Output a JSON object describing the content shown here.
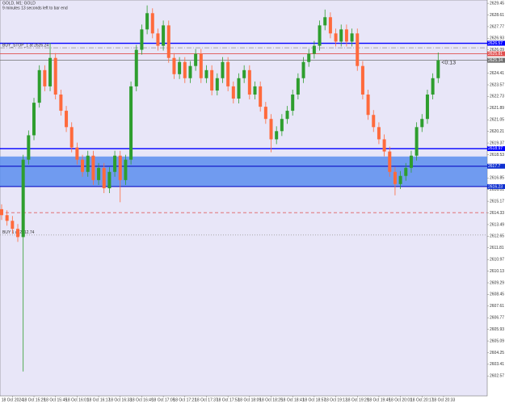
{
  "chart_data": {
    "type": "candlestick",
    "title": "GOLD, M1: GOLD",
    "subtitle": "9 minutes 13 seconds left to bar end",
    "countdown": "<0:13",
    "up_color": "#2e9e2e",
    "down_color": "#ff6a3c",
    "open": [
      2614.6,
      2614.17,
      2613.76,
      2613.18,
      2612.59,
      2618.17,
      2619.93,
      2622.28,
      2624.63,
      2623.46,
      2625.51,
      2622.87,
      2621.7,
      2620.52,
      2619.05,
      2618.17,
      2617.29,
      2618.46,
      2616.7,
      2617.58,
      2616.11,
      2617.29,
      2618.46,
      2616.7,
      2618.17,
      2623.46,
      2626.1,
      2627.57,
      2628.74,
      2627.28,
      2626.39,
      2627.86,
      2625.51,
      2624.34,
      2625.22,
      2624.05,
      2624.93,
      2625.81,
      2624.05,
      2624.63,
      2623.16,
      2624.05,
      2625.22,
      2623.46,
      2622.58,
      2624.05,
      2624.63,
      2622.87,
      2623.46,
      2621.99,
      2621.11,
      2619.64,
      2620.23,
      2621.11,
      2621.7,
      2622.87,
      2624.05,
      2625.22,
      2625.81,
      2626.39,
      2627.86,
      2628.45,
      2627.28,
      2626.69,
      2627.57,
      2626.69,
      2627.28,
      2624.93,
      2622.87,
      2621.4,
      2620.52,
      2619.64,
      2618.76,
      2617.29,
      2616.41,
      2617.0,
      2617.58,
      2618.46,
      2620.52,
      2621.11,
      2622.87,
      2624.05
    ],
    "high": [
      2614.95,
      2614.52,
      2614.11,
      2613.53,
      2618.52,
      2620.28,
      2622.63,
      2624.98,
      2624.98,
      2626.6,
      2625.86,
      2623.22,
      2622.05,
      2620.87,
      2619.4,
      2618.52,
      2618.81,
      2618.81,
      2617.93,
      2617.93,
      2617.64,
      2618.81,
      2618.81,
      2618.52,
      2623.81,
      2626.45,
      2627.92,
      2629.3,
      2629.09,
      2627.63,
      2628.21,
      2628.21,
      2625.86,
      2625.57,
      2625.57,
      2625.28,
      2626.16,
      2626.16,
      2624.98,
      2624.98,
      2624.4,
      2625.57,
      2625.57,
      2623.81,
      2624.4,
      2624.98,
      2624.98,
      2623.81,
      2623.81,
      2622.34,
      2621.46,
      2620.58,
      2621.46,
      2622.05,
      2623.22,
      2624.4,
      2625.57,
      2626.16,
      2626.74,
      2628.21,
      2629.0,
      2628.8,
      2627.63,
      2627.92,
      2627.92,
      2627.63,
      2627.63,
      2625.28,
      2623.22,
      2621.75,
      2620.87,
      2619.99,
      2619.11,
      2617.64,
      2617.35,
      2617.93,
      2618.81,
      2620.87,
      2621.46,
      2623.22,
      2624.4,
      2625.9
    ],
    "low": [
      2613.82,
      2613.41,
      2612.83,
      2612.24,
      2602.89,
      2617.82,
      2619.58,
      2621.93,
      2623.11,
      2623.11,
      2622.52,
      2621.35,
      2620.17,
      2618.7,
      2617.82,
      2616.94,
      2616.94,
      2616.35,
      2616.35,
      2615.76,
      2615.76,
      2616.94,
      2615.1,
      2616.35,
      2617.82,
      2623.11,
      2625.75,
      2627.22,
      2626.93,
      2626.04,
      2626.04,
      2625.16,
      2623.99,
      2623.99,
      2623.7,
      2623.7,
      2624.58,
      2623.7,
      2623.7,
      2622.81,
      2622.81,
      2623.7,
      2623.11,
      2622.23,
      2622.23,
      2623.7,
      2622.52,
      2622.52,
      2621.64,
      2620.76,
      2618.7,
      2619.29,
      2619.88,
      2620.76,
      2621.35,
      2622.52,
      2623.7,
      2624.87,
      2625.46,
      2626.04,
      2627.51,
      2626.93,
      2626.34,
      2626.34,
      2626.34,
      2626.34,
      2624.58,
      2622.52,
      2621.05,
      2620.17,
      2619.29,
      2618.41,
      2616.94,
      2615.6,
      2616.06,
      2616.65,
      2617.23,
      2618.11,
      2620.17,
      2620.76,
      2622.52,
      2623.7
    ],
    "close": [
      2614.17,
      2613.76,
      2613.18,
      2612.59,
      2618.17,
      2619.93,
      2622.28,
      2624.63,
      2623.46,
      2625.51,
      2622.87,
      2621.7,
      2620.52,
      2619.05,
      2618.17,
      2617.29,
      2618.46,
      2616.7,
      2617.58,
      2616.11,
      2617.29,
      2618.46,
      2616.7,
      2618.17,
      2623.46,
      2626.1,
      2627.57,
      2628.74,
      2627.28,
      2626.39,
      2627.86,
      2625.51,
      2624.34,
      2625.22,
      2624.05,
      2624.93,
      2625.81,
      2624.05,
      2624.63,
      2623.16,
      2624.05,
      2625.22,
      2623.46,
      2622.58,
      2624.05,
      2624.63,
      2622.87,
      2623.46,
      2621.99,
      2621.11,
      2619.64,
      2620.23,
      2621.11,
      2621.7,
      2622.87,
      2624.05,
      2625.22,
      2625.81,
      2626.39,
      2627.86,
      2628.45,
      2627.28,
      2626.69,
      2627.57,
      2626.69,
      2627.28,
      2624.93,
      2622.87,
      2621.4,
      2620.52,
      2619.64,
      2618.76,
      2617.29,
      2616.41,
      2617.0,
      2617.58,
      2618.46,
      2620.52,
      2621.11,
      2622.87,
      2624.05,
      2625.34
    ],
    "ylim": [
      2601.13,
      2629.69
    ],
    "yticks": [
      2629.45,
      2628.61,
      2627.77,
      2626.93,
      2626.09,
      2625.25,
      2624.41,
      2623.57,
      2622.73,
      2621.89,
      2621.05,
      2620.21,
      2619.37,
      2618.53,
      2617.69,
      2616.85,
      2616.01,
      2615.17,
      2614.33,
      2613.49,
      2612.65,
      2611.81,
      2610.97,
      2610.13,
      2609.29,
      2608.45,
      2607.61,
      2606.77,
      2605.93,
      2605.09,
      2604.25,
      2603.41,
      2602.57
    ],
    "xlim": [
      -0.3,
      90.1
    ],
    "xticks": [
      {
        "value": 2,
        "label": "18 Oct 2024"
      },
      {
        "value": 6,
        "label": "18 Oct 15:29"
      },
      {
        "value": 10,
        "label": "18 Oct 15:45"
      },
      {
        "value": 14,
        "label": "18 Oct 16:01"
      },
      {
        "value": 18,
        "label": "18 Oct 16:17"
      },
      {
        "value": 22,
        "label": "18 Oct 16:33"
      },
      {
        "value": 26,
        "label": "18 Oct 16:49"
      },
      {
        "value": 30,
        "label": "18 Oct 17:05"
      },
      {
        "value": 34,
        "label": "18 Oct 17:21"
      },
      {
        "value": 38,
        "label": "18 Oct 17:37"
      },
      {
        "value": 42,
        "label": "18 Oct 17:53"
      },
      {
        "value": 46,
        "label": "18 Oct 18:09"
      },
      {
        "value": 50,
        "label": "18 Oct 18:25"
      },
      {
        "value": 54,
        "label": "18 Oct 18:41"
      },
      {
        "value": 58,
        "label": "18 Oct 18:57"
      },
      {
        "value": 62,
        "label": "18 Oct 19:13"
      },
      {
        "value": 66,
        "label": "18 Oct 19:29"
      },
      {
        "value": 70,
        "label": "18 Oct 19:45"
      },
      {
        "value": 74,
        "label": "18 Oct 20:01"
      },
      {
        "value": 78,
        "label": "18 Oct 20:17"
      },
      {
        "value": 82,
        "label": "18 Oct 20:33"
      }
    ],
    "zone": {
      "from": 2616.23,
      "to": 2618.4,
      "mid": 2617.7,
      "color": "#5b8def"
    },
    "levels": [
      {
        "value": 2626.57,
        "color": "#0000ff",
        "style": "solid"
      },
      {
        "value": 2626.24,
        "color": "#a0a0a0",
        "style": "dashdot",
        "label": "BUY_STOP_1 at 2626.24"
      },
      {
        "value": 2625.81,
        "color": "#e05050",
        "style": "solid"
      },
      {
        "value": 2625.34,
        "color": "#707070",
        "style": "solid"
      },
      {
        "value": 2618.97,
        "color": "#0000ff",
        "style": "solid"
      },
      {
        "value": 2614.35,
        "color": "#e06060",
        "style": "dashed"
      },
      {
        "value": 2612.74,
        "color": "#a0a0a0",
        "style": "dotted",
        "label": "BUY 1 at 2612.74"
      }
    ]
  }
}
